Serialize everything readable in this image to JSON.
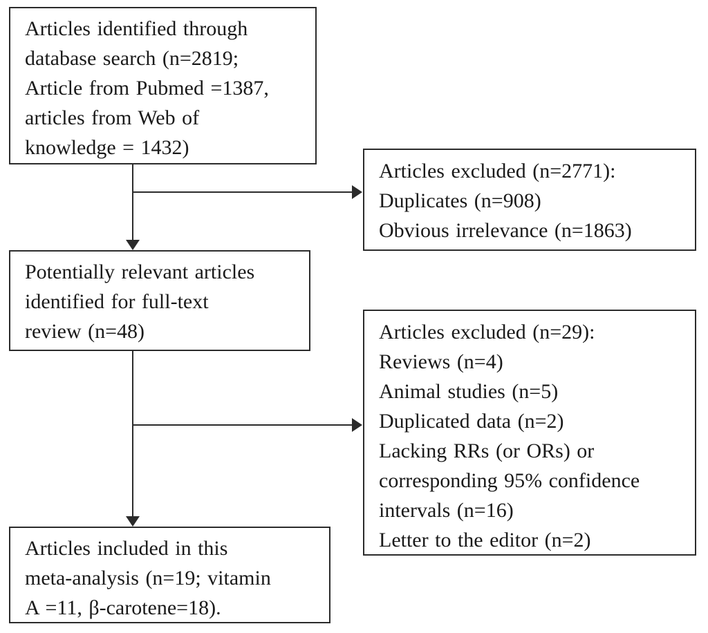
{
  "diagram": {
    "type": "flowchart",
    "colors": {
      "background": "#ffffff",
      "border": "#2b2b2b",
      "text": "#1a1a1a"
    },
    "boxes": {
      "identified": {
        "text": "Articles identified through\ndatabase search (n=2819;\nArticle from Pubmed =1387,\narticles from Web of\nknowledge = 1432)"
      },
      "excluded_initial": {
        "text": "Articles excluded (n=2771):\nDuplicates (n=908)\nObvious irrelevance (n=1863)"
      },
      "fulltext": {
        "text": "Potentially relevant articles\nidentified for full-text\nreview (n=48)"
      },
      "excluded_fulltext": {
        "text": "Articles excluded (n=29):\nReviews (n=4)\nAnimal studies (n=5)\nDuplicated data (n=2)\nLacking RRs (or ORs) or\ncorresponding 95% confidence\nintervals (n=16)\nLetter to the editor (n=2)"
      },
      "included": {
        "text": "Articles included in this\nmeta-analysis (n=19; vitamin\nA =11, β-carotene=18)."
      }
    }
  }
}
